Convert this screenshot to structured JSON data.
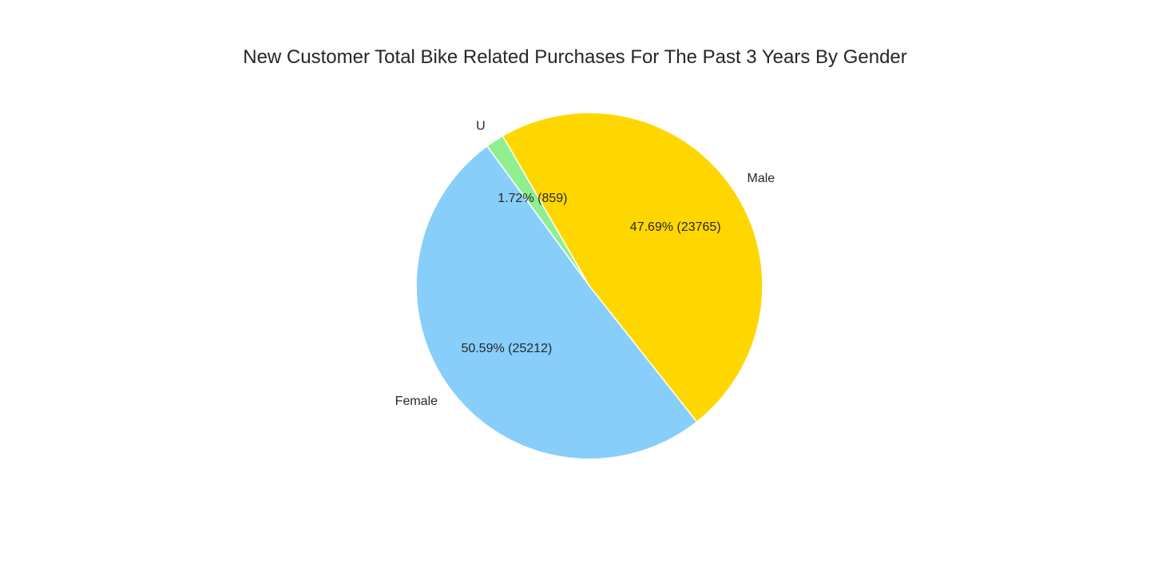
{
  "chart_data": {
    "type": "pie",
    "title": "New Customer Total Bike Related Purchases For The Past 3 Years By Gender",
    "start_angle_deg": 120,
    "counterclockwise": true,
    "slices": [
      {
        "label": "U",
        "value": 859,
        "pct_text": "1.72%  (859)",
        "color": "#90ee90"
      },
      {
        "label": "Female",
        "value": 25212,
        "pct_text": "50.59%  (25212)",
        "color": "#87cefa"
      },
      {
        "label": "Male",
        "value": 23765,
        "pct_text": "47.69%  (23765)",
        "color": "#ffd700"
      }
    ]
  }
}
